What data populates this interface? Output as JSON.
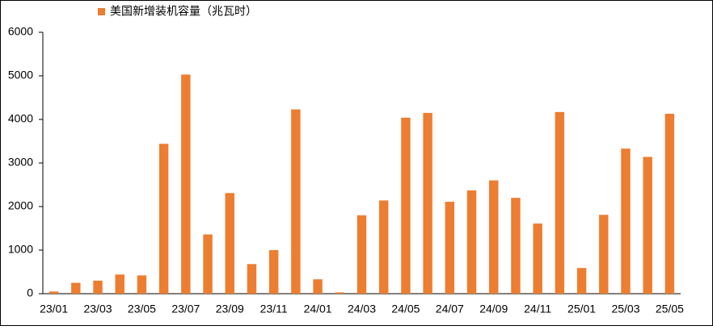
{
  "chart_data": {
    "type": "bar",
    "categories": [
      "23/01",
      null,
      "23/03",
      null,
      "23/05",
      null,
      "23/07",
      null,
      "23/09",
      null,
      "23/11",
      null,
      "24/01",
      null,
      "24/03",
      null,
      "24/05",
      null,
      "24/07",
      null,
      "24/09",
      null,
      "24/11",
      null,
      "25/01",
      null,
      "25/03",
      null,
      "25/05"
    ],
    "series": [
      {
        "name": "美国新增装机容量（兆瓦时）",
        "color": "#ed7d31",
        "values": [
          50,
          250,
          300,
          440,
          420,
          3440,
          5030,
          1360,
          2310,
          680,
          1000,
          4230,
          330,
          30,
          1800,
          2140,
          4040,
          4150,
          2110,
          2370,
          2600,
          2200,
          1610,
          4170,
          590,
          1810,
          3330,
          3140,
          4130
        ]
      }
    ],
    "ylim": [
      0,
      6000
    ],
    "yticks": [
      0,
      1000,
      2000,
      3000,
      4000,
      5000,
      6000
    ],
    "grid": false,
    "legend": "top"
  }
}
